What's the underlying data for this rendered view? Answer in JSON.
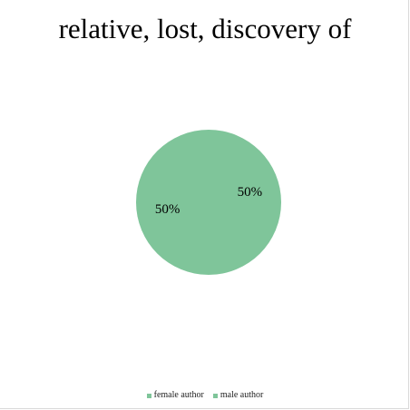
{
  "chart_data": {
    "type": "pie",
    "title": "relative, lost, discovery of",
    "categories": [
      "female author",
      "male author"
    ],
    "values": [
      50,
      50
    ],
    "labels": [
      "50%",
      "50%"
    ],
    "colors": [
      "#7fc59a",
      "#7fc59a"
    ],
    "legend_position": "bottom"
  }
}
